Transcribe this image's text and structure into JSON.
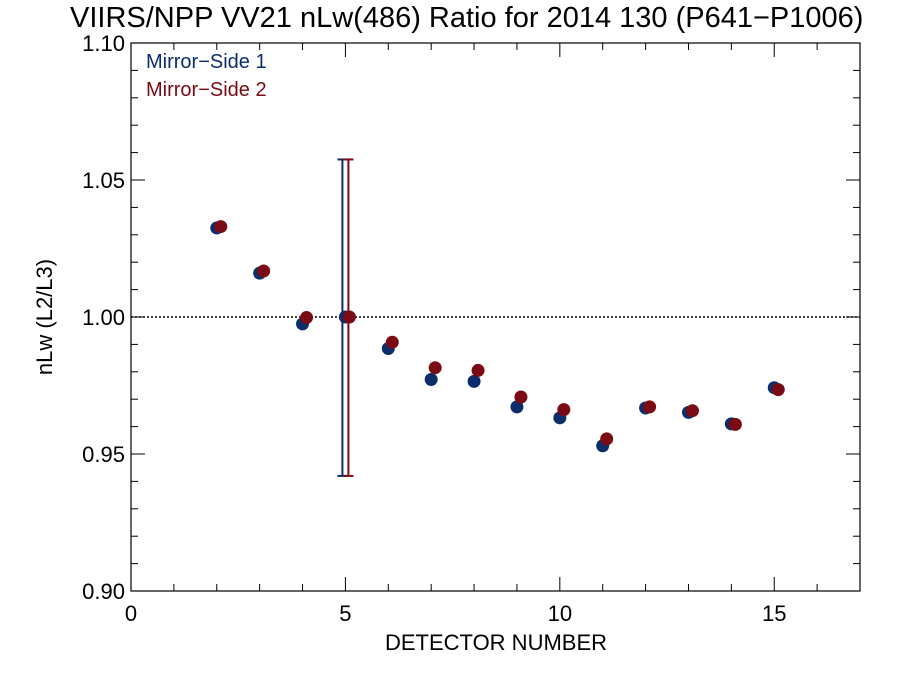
{
  "chart_data": {
    "type": "scatter",
    "title": "VIIRS/NPP VV21 nLw(486) Ratio for 2014 130 (P641−P1006)",
    "xlabel": "DETECTOR NUMBER",
    "ylabel": "nLw (L2/L3)",
    "xlim": [
      0,
      17
    ],
    "ylim": [
      0.9,
      1.1
    ],
    "x_ticks": [
      0,
      5,
      10,
      15
    ],
    "x_tick_labels": [
      "0",
      "5",
      "10",
      "15"
    ],
    "y_ticks": [
      0.9,
      0.95,
      1.0,
      1.05,
      1.1
    ],
    "y_tick_labels": [
      "0.90",
      "0.95",
      "1.00",
      "1.05",
      "1.10"
    ],
    "reference_line": 1.0,
    "grid": false,
    "legend_position": "top-left",
    "series": [
      {
        "name": "Mirror−Side 1",
        "color": "#0b2e6b",
        "x": [
          2,
          3,
          4,
          5,
          6,
          7,
          8,
          9,
          10,
          11,
          12,
          13,
          14,
          15
        ],
        "y": [
          1.0325,
          1.016,
          0.9975,
          1.0,
          0.9885,
          0.9772,
          0.9765,
          0.9672,
          0.9632,
          0.953,
          0.9668,
          0.9652,
          0.961,
          0.9742
        ],
        "error_bar": {
          "x": 5,
          "low": 0.942,
          "high": 1.0575
        }
      },
      {
        "name": "Mirror−Side 2",
        "color": "#7a0a14",
        "x": [
          2,
          3,
          4,
          5,
          6,
          7,
          8,
          9,
          10,
          11,
          12,
          13,
          14,
          15
        ],
        "y": [
          1.033,
          1.0168,
          0.9998,
          1.0,
          0.9908,
          0.9815,
          0.9805,
          0.9708,
          0.9662,
          0.9555,
          0.9672,
          0.9658,
          0.9608,
          0.9735
        ],
        "error_bar": {
          "x": 5,
          "low": 0.942,
          "high": 1.0575
        }
      }
    ]
  }
}
